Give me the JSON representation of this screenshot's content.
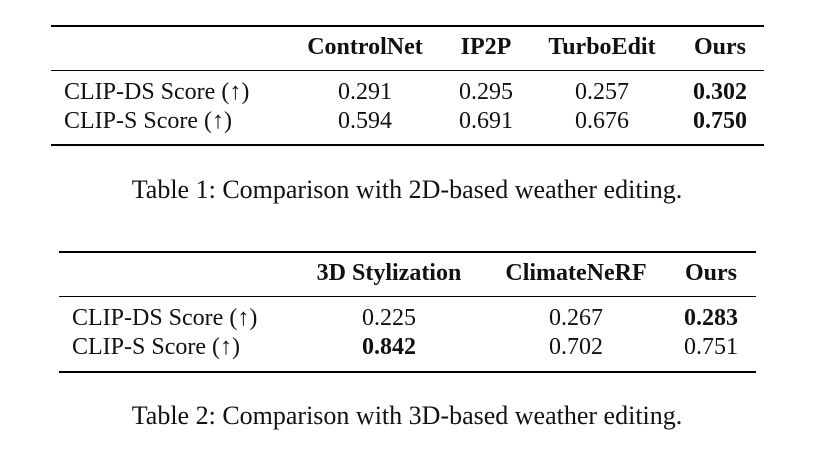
{
  "table1": {
    "caption": "Table 1: Comparison with 2D-based weather editing.",
    "headers": [
      "ControlNet",
      "IP2P",
      "TurboEdit",
      "Ours"
    ],
    "rows": [
      {
        "label": "CLIP-DS Score (↑)",
        "values": [
          "0.291",
          "0.295",
          "0.257",
          "0.302"
        ],
        "bold": [
          false,
          false,
          false,
          true
        ]
      },
      {
        "label": "CLIP-S Score (↑)",
        "values": [
          "0.594",
          "0.691",
          "0.676",
          "0.750"
        ],
        "bold": [
          false,
          false,
          false,
          true
        ]
      }
    ]
  },
  "table2": {
    "caption": "Table 2: Comparison with 3D-based weather editing.",
    "headers": [
      "3D Stylization",
      "ClimateNeRF",
      "Ours"
    ],
    "rows": [
      {
        "label": "CLIP-DS Score (↑)",
        "values": [
          "0.225",
          "0.267",
          "0.283"
        ],
        "bold": [
          false,
          false,
          true
        ]
      },
      {
        "label": "CLIP-S Score (↑)",
        "values": [
          "0.842",
          "0.702",
          "0.751"
        ],
        "bold": [
          true,
          false,
          false
        ]
      }
    ]
  }
}
